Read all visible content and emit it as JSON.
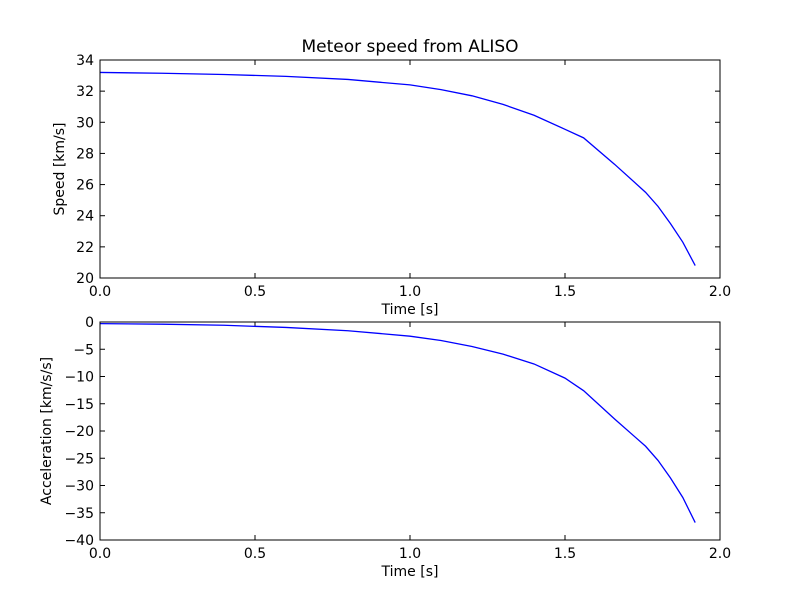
{
  "figure": {
    "background": "#ffffff"
  },
  "chart_data": [
    {
      "type": "line",
      "title": "Meteor speed from  ALISO",
      "xlabel": "Time [s]",
      "ylabel": "Speed [km/s]",
      "xlim": [
        0.0,
        2.0
      ],
      "ylim": [
        20,
        34
      ],
      "xticks": [
        "0.0",
        "0.5",
        "1.0",
        "1.5",
        "2.0"
      ],
      "yticks": [
        "20",
        "22",
        "24",
        "26",
        "28",
        "30",
        "32",
        "34"
      ],
      "grid": false,
      "series": [
        {
          "color": "#0000ff",
          "x": [
            0.0,
            0.2,
            0.4,
            0.6,
            0.8,
            1.0,
            1.1,
            1.2,
            1.3,
            1.4,
            1.5,
            1.56,
            1.66,
            1.76,
            1.8,
            1.84,
            1.88,
            1.92
          ],
          "y": [
            33.2,
            33.15,
            33.07,
            32.95,
            32.75,
            32.4,
            32.1,
            31.7,
            31.15,
            30.45,
            29.55,
            29.0,
            27.3,
            25.5,
            24.6,
            23.5,
            22.3,
            20.8
          ]
        }
      ]
    },
    {
      "type": "line",
      "title": "",
      "xlabel": "Time [s]",
      "ylabel": "Acceleration [km/s/s]",
      "xlim": [
        0.0,
        2.0
      ],
      "ylim": [
        -40,
        0
      ],
      "xticks": [
        "0.0",
        "0.5",
        "1.0",
        "1.5",
        "2.0"
      ],
      "yticks": [
        "−40",
        "−35",
        "−30",
        "−25",
        "−20",
        "−15",
        "−10",
        "−5",
        "0"
      ],
      "grid": false,
      "series": [
        {
          "color": "#0000ff",
          "x": [
            0.0,
            0.2,
            0.4,
            0.6,
            0.8,
            1.0,
            1.1,
            1.2,
            1.3,
            1.4,
            1.5,
            1.56,
            1.66,
            1.76,
            1.8,
            1.84,
            1.88,
            1.92
          ],
          "y": [
            -0.3,
            -0.4,
            -0.6,
            -1.0,
            -1.6,
            -2.6,
            -3.4,
            -4.5,
            -5.9,
            -7.7,
            -10.3,
            -12.6,
            -17.8,
            -22.8,
            -25.4,
            -28.6,
            -32.2,
            -36.8
          ]
        }
      ]
    }
  ]
}
